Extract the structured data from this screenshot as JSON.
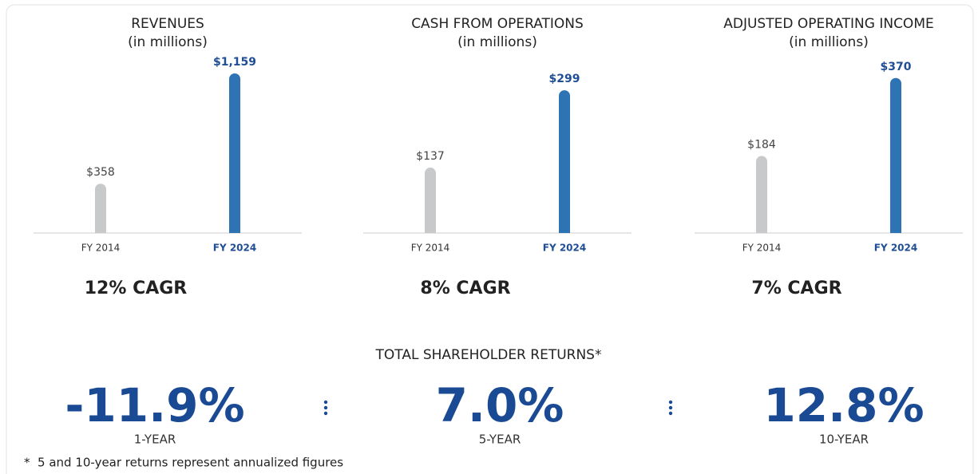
{
  "chart_data": [
    {
      "type": "bar",
      "title": "REVENUES",
      "subtitle": "(in millions)",
      "categories": [
        "FY 2014",
        "FY 2024"
      ],
      "values": [
        358,
        1159
      ],
      "value_labels": [
        "$358",
        "$1,159"
      ],
      "colors": [
        "#c8c9cb",
        "#2e74b5"
      ],
      "ylim": [
        0,
        1217
      ],
      "annotation": "12% CAGR"
    },
    {
      "type": "bar",
      "title": "CASH FROM OPERATIONS",
      "subtitle": "(in millions)",
      "categories": [
        "FY 2014",
        "FY 2024"
      ],
      "values": [
        137,
        299
      ],
      "value_labels": [
        "$137",
        "$299"
      ],
      "colors": [
        "#c8c9cb",
        "#2e74b5"
      ],
      "ylim": [
        0,
        351
      ],
      "annotation": "8% CAGR"
    },
    {
      "type": "bar",
      "title": "ADJUSTED OPERATING INCOME",
      "subtitle": "(in millions)",
      "categories": [
        "FY 2014",
        "FY 2024"
      ],
      "values": [
        184,
        370
      ],
      "value_labels": [
        "$184",
        "$370"
      ],
      "colors": [
        "#c8c9cb",
        "#2e74b5"
      ],
      "ylim": [
        0,
        400
      ],
      "annotation": "7% CAGR"
    }
  ],
  "returns": {
    "title": "TOTAL SHAREHOLDER RETURNS*",
    "items": [
      {
        "value": "-11.9%",
        "label": "1-YEAR"
      },
      {
        "value": "7.0%",
        "label": "5-YEAR"
      },
      {
        "value": "12.8%",
        "label": "10-YEAR"
      }
    ],
    "footnote": "*  5 and 10-year returns represent annualized figures"
  }
}
